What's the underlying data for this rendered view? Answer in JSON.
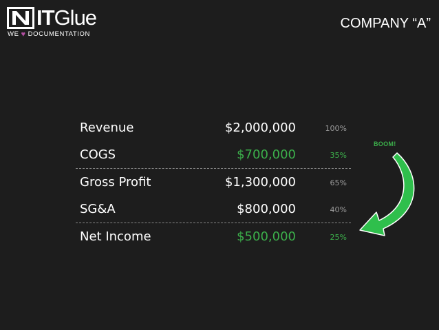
{
  "brand": {
    "name_bold": "IT",
    "name_regular": "Glue",
    "tagline_before": "WE",
    "tagline_after": "DOCUMENTATION",
    "heart_icon": "heart-icon",
    "accent_color": "#b14ea0"
  },
  "title": "COMPANY “A”",
  "income_statement": {
    "rows": [
      {
        "label": "Revenue",
        "amount": "$2,000,000",
        "percent": "100%",
        "highlight": false
      },
      {
        "label": "COGS",
        "amount": "$700,000",
        "percent": "35%",
        "highlight": true
      },
      {
        "label": "Gross Profit",
        "amount": "$1,300,000",
        "percent": "65%",
        "highlight": false
      },
      {
        "label": "SG&A",
        "amount": "$800,000",
        "percent": "40%",
        "highlight": false
      },
      {
        "label": "Net Income",
        "amount": "$500,000",
        "percent": "25%",
        "highlight": true
      }
    ]
  },
  "callout": {
    "text": "BOOM!",
    "color": "#3cb04b"
  }
}
